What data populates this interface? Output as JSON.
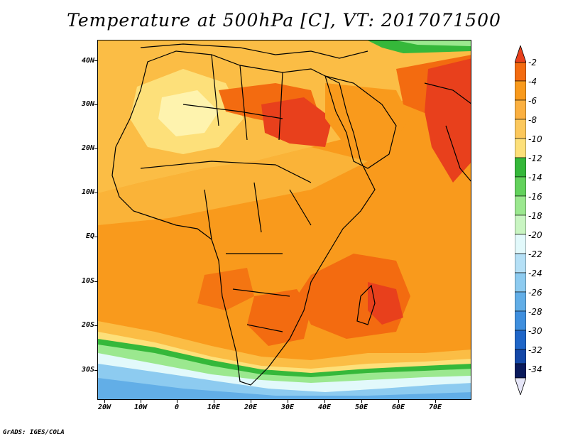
{
  "title": "Temperature at 500hPa [C], VT: 2017071500",
  "credit": "GrADS: IGES/COLA",
  "lat_labels": [
    "40N",
    "30N",
    "20N",
    "10N",
    "EQ",
    "10S",
    "20S",
    "30S"
  ],
  "lon_labels": [
    "20W",
    "10W",
    "0",
    "10E",
    "20E",
    "30E",
    "40E",
    "50E",
    "60E",
    "70E"
  ],
  "colorbar": {
    "labels": [
      "-2",
      "-4",
      "-6",
      "-8",
      "-10",
      "-12",
      "-14",
      "-16",
      "-18",
      "-20",
      "-22",
      "-24",
      "-26",
      "-28",
      "-30",
      "-32",
      "-34"
    ],
    "colors": [
      "#e8401c",
      "#f36b10",
      "#f99a1c",
      "#fbbd45",
      "#fde07a",
      "#fef5b4",
      "#35b83a",
      "#63d25c",
      "#9be88f",
      "#c9f5c2",
      "#e2f9fb",
      "#b5e0f6",
      "#8dcbf0",
      "#62aee7",
      "#3f8fde",
      "#1f66c8",
      "#1448a8",
      "#0c2e86",
      "#0a1a5c",
      "#e6e6f8"
    ]
  },
  "regions": [
    {
      "name": "north-africa-warm",
      "color": "#fbbd45"
    },
    {
      "name": "sahara-cool",
      "color": "#fde07a"
    },
    {
      "name": "egypt-hot",
      "color": "#e8401c"
    },
    {
      "name": "india-hot",
      "color": "#e8401c"
    },
    {
      "name": "mozambique-hot",
      "color": "#f36b10"
    },
    {
      "name": "southern-ocean-cold",
      "color": "#9be88f"
    },
    {
      "name": "southern-ocean-coldest",
      "color": "#62aee7"
    },
    {
      "name": "mediterranean-green",
      "color": "#35b83a"
    }
  ]
}
